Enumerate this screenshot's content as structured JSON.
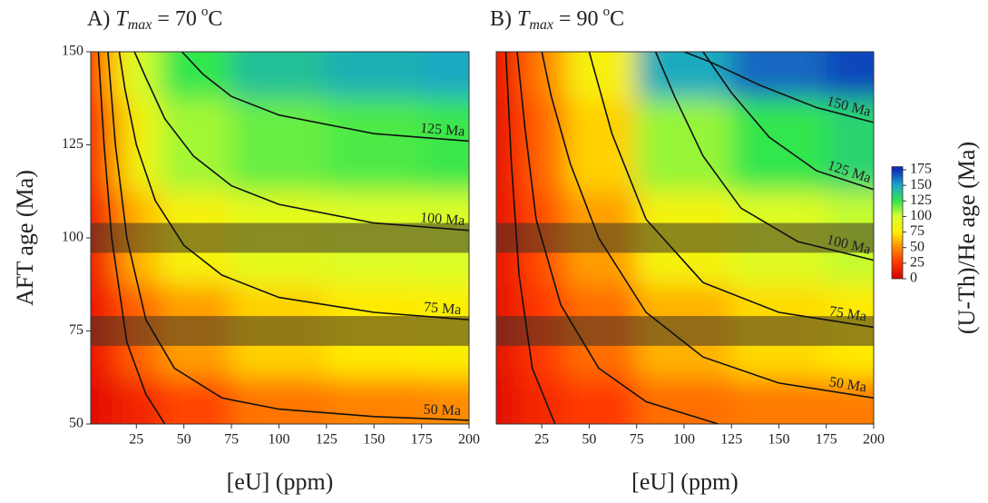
{
  "chart_data": [
    {
      "type": "heatmap",
      "title": {
        "label": "A)",
        "symbol": "T",
        "subscript": "max",
        "value": "= 70",
        "degree": "o",
        "unit": "C"
      },
      "xlabel": "[eU] (ppm)",
      "ylabel": "AFT age (Ma)",
      "x": [
        5,
        15,
        25,
        50,
        100,
        150,
        200
      ],
      "y": [
        50,
        75,
        100,
        125,
        150
      ],
      "z": [
        [
          8,
          14,
          18,
          30,
          44,
          48,
          50
        ],
        [
          12,
          28,
          40,
          55,
          68,
          74,
          77
        ],
        [
          15,
          42,
          62,
          80,
          92,
          97,
          99
        ],
        [
          20,
          58,
          85,
          108,
          117,
          121,
          124
        ],
        [
          25,
          72,
          101,
          125,
          140,
          146,
          149
        ]
      ],
      "xlim": [
        1,
        200
      ],
      "ylim": [
        50,
        150
      ],
      "xticks": [
        25,
        50,
        75,
        100,
        125,
        150,
        175,
        200
      ],
      "yticks": [
        50,
        75,
        100,
        125,
        150
      ],
      "bands": [
        [
          96,
          104
        ],
        [
          71,
          79
        ]
      ],
      "contours": [
        {
          "label": null,
          "x": [
            40,
            30,
            20,
            12,
            8,
            5
          ],
          "y": [
            50,
            58,
            72,
            100,
            125,
            150
          ]
        },
        {
          "label": "50 Ma",
          "x": [
            200,
            150,
            100,
            70,
            45,
            30,
            20,
            14,
            10
          ],
          "y": [
            51,
            52,
            54,
            57,
            65,
            78,
            100,
            125,
            150
          ]
        },
        {
          "label": "75 Ma",
          "x": [
            200,
            150,
            100,
            70,
            50,
            35,
            25,
            19,
            16
          ],
          "y": [
            78,
            80,
            84,
            90,
            98,
            110,
            125,
            140,
            150
          ]
        },
        {
          "label": "100 Ma",
          "x": [
            200,
            150,
            100,
            75,
            55,
            40,
            30,
            24
          ],
          "y": [
            102,
            104,
            109,
            114,
            122,
            132,
            143,
            150
          ]
        },
        {
          "label": "125 Ma",
          "x": [
            200,
            150,
            100,
            75,
            60,
            49
          ],
          "y": [
            126,
            128,
            133,
            138,
            144,
            150
          ]
        }
      ]
    },
    {
      "type": "heatmap",
      "title": {
        "label": "B)",
        "symbol": "T",
        "subscript": "max",
        "value": "= 90",
        "degree": "o",
        "unit": "C"
      },
      "xlabel": "[eU] (ppm)",
      "x": [
        5,
        15,
        25,
        50,
        100,
        150,
        200
      ],
      "y": [
        50,
        75,
        100,
        125,
        150
      ],
      "z": [
        [
          8,
          16,
          20,
          27,
          42,
          46,
          46
        ],
        [
          9,
          20,
          28,
          42,
          60,
          70,
          74
        ],
        [
          10,
          24,
          35,
          55,
          82,
          96,
          103
        ],
        [
          11,
          28,
          42,
          68,
          110,
          125,
          132
        ],
        [
          12,
          32,
          50,
          80,
          148,
          163,
          170
        ]
      ],
      "xlim": [
        1,
        200
      ],
      "ylim": [
        50,
        150
      ],
      "xticks": [
        25,
        50,
        75,
        100,
        125,
        150,
        175,
        200
      ],
      "bands": [
        [
          96,
          104
        ],
        [
          71,
          79
        ]
      ],
      "contours": [
        {
          "label": null,
          "x": [
            32,
            20,
            13,
            9,
            6
          ],
          "y": [
            50,
            65,
            90,
            120,
            150
          ]
        },
        {
          "label": null,
          "x": [
            118,
            80,
            55,
            35,
            22,
            16,
            12
          ],
          "y": [
            50,
            56,
            65,
            82,
            105,
            130,
            150
          ]
        },
        {
          "label": "50 Ma",
          "x": [
            200,
            150,
            110,
            80,
            55,
            40,
            30,
            25
          ],
          "y": [
            57,
            61,
            68,
            80,
            100,
            120,
            138,
            150
          ]
        },
        {
          "label": "75 Ma",
          "x": [
            200,
            150,
            110,
            80,
            62,
            50
          ],
          "y": [
            76,
            80,
            88,
            105,
            128,
            150
          ]
        },
        {
          "label": "100 Ma",
          "x": [
            200,
            160,
            130,
            110,
            95,
            85
          ],
          "y": [
            94,
            99,
            108,
            122,
            138,
            150
          ]
        },
        {
          "label": "125 Ma",
          "x": [
            200,
            170,
            145,
            125,
            110
          ],
          "y": [
            113,
            118,
            127,
            139,
            150
          ]
        },
        {
          "label": "150 Ma",
          "x": [
            200,
            170,
            140,
            115,
            100
          ],
          "y": [
            131,
            135,
            141,
            147,
            150
          ]
        }
      ]
    },
    {
      "type": "colorbar",
      "label": "(U-Th)/He  age (Ma)",
      "ylim": [
        0,
        180
      ],
      "yticks": [
        0,
        25,
        50,
        75,
        100,
        125,
        150,
        175
      ],
      "colors": [
        "#d40000",
        "#ff3300",
        "#ff8a00",
        "#ffee00",
        "#d8ff2a",
        "#33e64d",
        "#1aa6c8",
        "#0d2fb8"
      ]
    }
  ]
}
